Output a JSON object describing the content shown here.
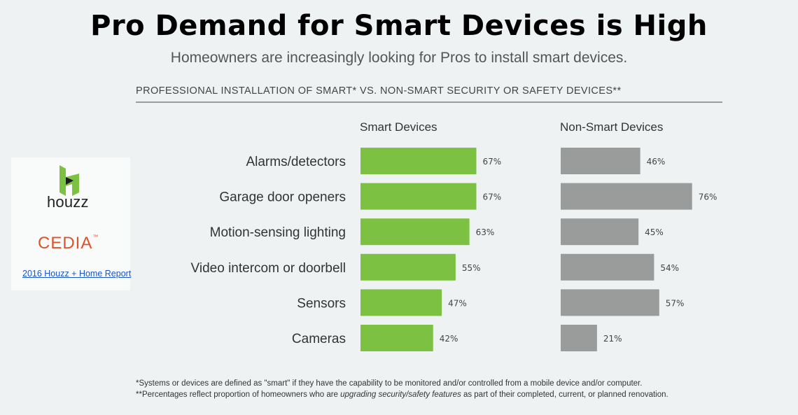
{
  "header": {
    "title": "Pro Demand for Smart Devices is High",
    "subtitle": "Homeowners are increasingly looking for Pros to install smart devices."
  },
  "sidebar": {
    "houzz_logo_text": "houzz",
    "cedia_logo_text": "CEDIA",
    "report_link": "2016 Houzz + Home Report"
  },
  "chart_data": {
    "type": "bar",
    "title": "PROFESSIONAL INSTALLATION OF SMART* VS. NON-SMART SECURITY OR SAFETY DEVICES**",
    "categories": [
      "Alarms/detectors",
      "Garage door openers",
      "Motion-sensing lighting",
      "Video intercom or doorbell",
      "Sensors",
      "Cameras"
    ],
    "series": [
      {
        "name": "Smart Devices",
        "values": [
          67,
          67,
          63,
          55,
          47,
          42
        ],
        "labels": [
          "67%",
          "67%",
          "63%",
          "55%",
          "47%",
          "42%"
        ],
        "color": "#7cc142"
      },
      {
        "name": "Non-Smart Devices",
        "values": [
          46,
          76,
          45,
          54,
          57,
          21
        ],
        "labels": [
          "46%",
          "76%",
          "45%",
          "54%",
          "57%",
          "21%"
        ],
        "color": "#9a9b9b"
      }
    ],
    "orientation": "horizontal",
    "grid": false
  },
  "footnotes": {
    "note1": "*Systems or devices are defined as \"smart\" if they have the capability to be monitored and/or controlled from a mobile device and/or computer.",
    "note2_pre": "**Percentages reflect proportion of homeowners who are ",
    "note2_em": "upgrading security/safety features",
    "note2_post": " as part of their completed, current, or planned renovation."
  }
}
